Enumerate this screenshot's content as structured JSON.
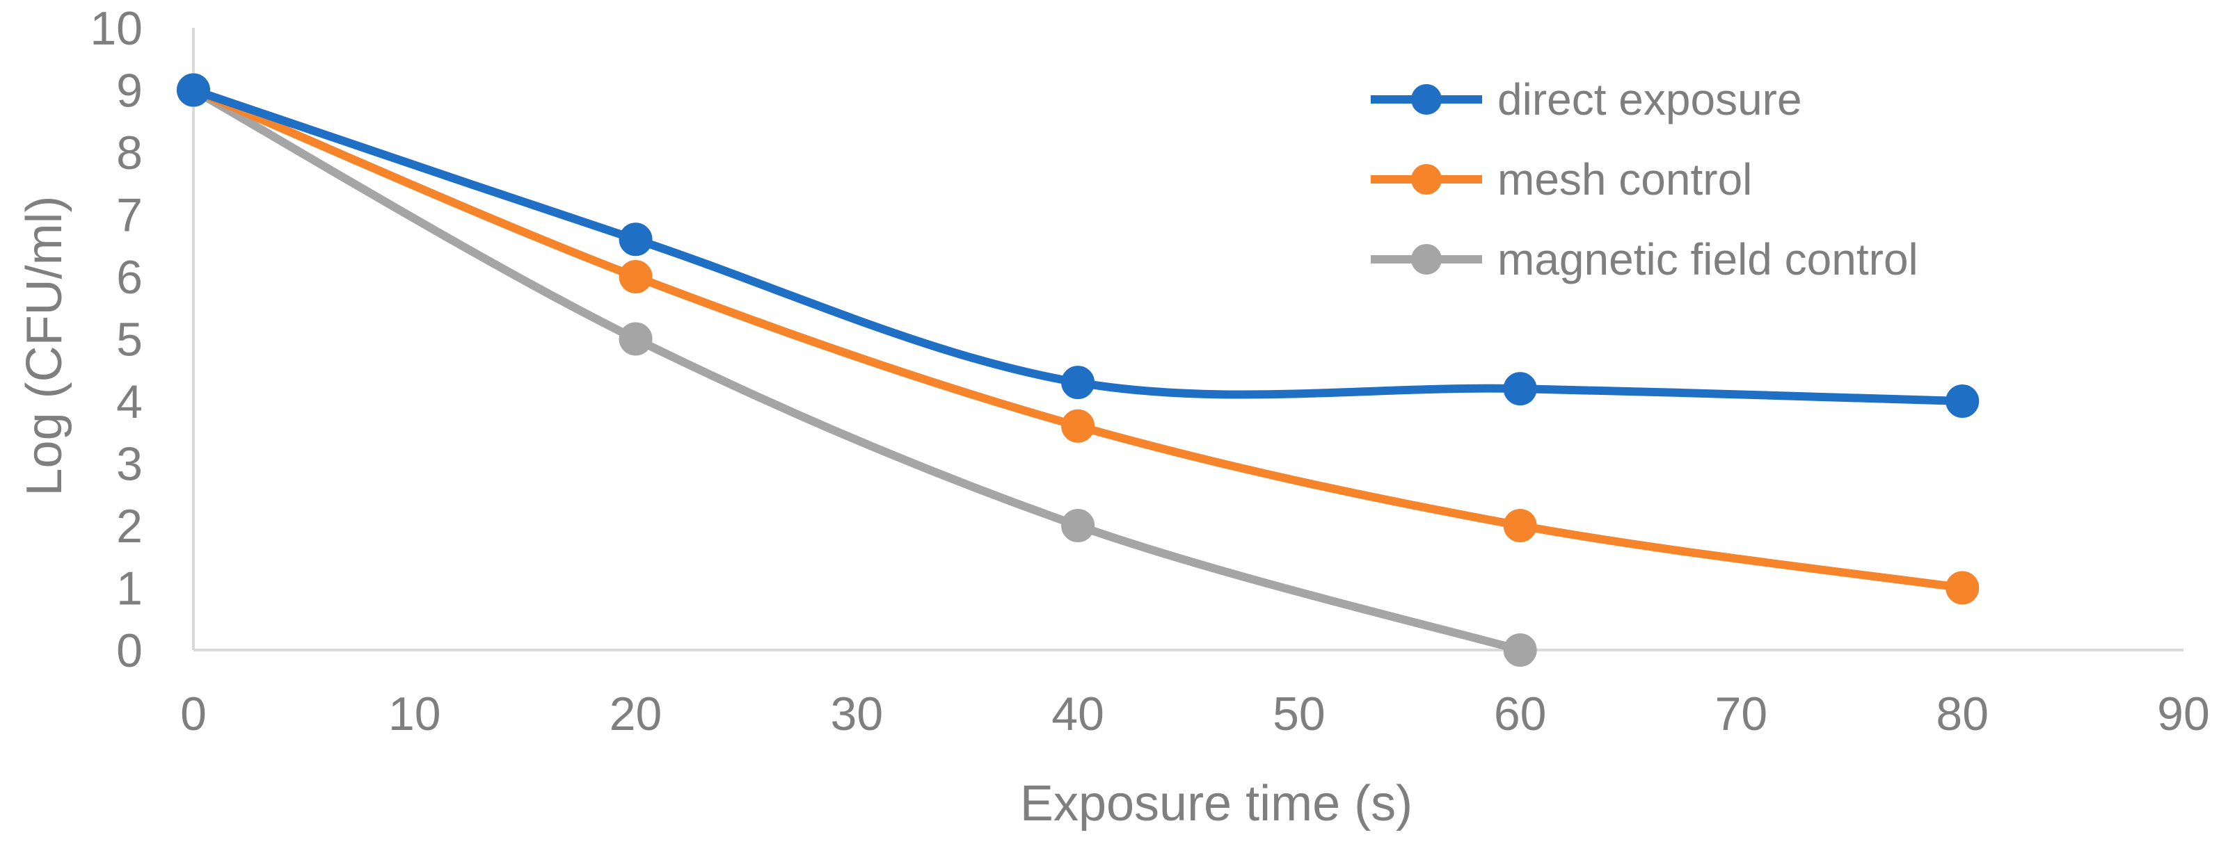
{
  "chart_data": {
    "type": "line",
    "title": "",
    "xlabel": "Exposure time (s)",
    "ylabel": "Log (CFU/ml)",
    "xlim": [
      0,
      90
    ],
    "ylim": [
      0,
      10
    ],
    "x_ticks": [
      "0",
      "10",
      "20",
      "30",
      "40",
      "50",
      "60",
      "70",
      "80",
      "90"
    ],
    "y_ticks": [
      "0",
      "1",
      "2",
      "3",
      "4",
      "5",
      "6",
      "7",
      "8",
      "9",
      "10"
    ],
    "grid": false,
    "smooth": true,
    "legend_position": "top-right",
    "series": [
      {
        "name": "direct exposure",
        "color": "#1f6fc5",
        "x": [
          0,
          20,
          40,
          60,
          80
        ],
        "values": [
          9,
          6.6,
          4.3,
          4.2,
          4.0
        ]
      },
      {
        "name": "mesh control",
        "color": "#f5842a",
        "x": [
          0,
          20,
          40,
          60,
          80
        ],
        "values": [
          9,
          6.0,
          3.6,
          2.0,
          1.0
        ]
      },
      {
        "name": "magnetic field control",
        "color": "#a5a5a5",
        "x": [
          0,
          20,
          40,
          60
        ],
        "values": [
          9,
          5.0,
          2.0,
          0
        ]
      }
    ]
  }
}
